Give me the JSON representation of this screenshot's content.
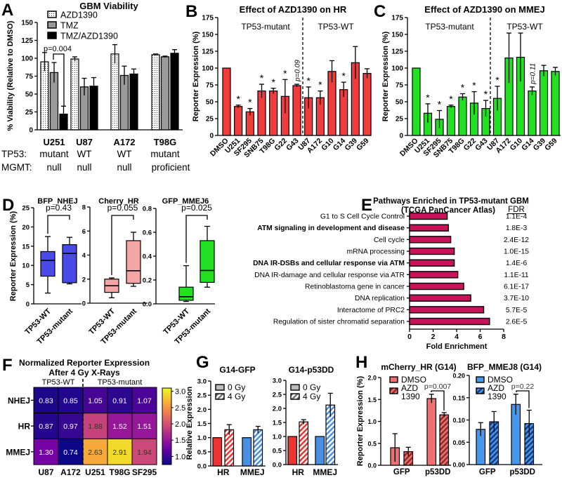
{
  "panel_letters": [
    "A",
    "B",
    "C",
    "D",
    "E",
    "F",
    "G",
    "H"
  ],
  "colors": {
    "hr_red": "#f03c3c",
    "mmej_green": "#22e022",
    "nhej_blue": "#4a4ae8",
    "cherry_pink": "#f4a6a6",
    "pathway_magenta": "#c8125a",
    "g_red": "#ee3333",
    "g_blue": "#4a90e2",
    "h_red": "#f07070",
    "h_red_hatch": "#8b2b2b",
    "h_blue": "#4499ee",
    "h_blue_hatch": "#1a3a7a"
  },
  "chart_data": [
    {
      "panel": "A",
      "type": "bar",
      "title": "GBM Viability",
      "ylabel": "% Viability (Relative to DMSO)",
      "ylim": [
        0,
        150
      ],
      "yticks": [
        "0",
        "25",
        "50",
        "75",
        "100",
        "125",
        "150"
      ],
      "categories": [
        "U251",
        "U87",
        "A172",
        "T98G"
      ],
      "series": [
        {
          "name": "AZD1390",
          "pattern": "dotted",
          "values": [
            95,
            99,
            106,
            105
          ],
          "errors": [
            13,
            3,
            13,
            1
          ]
        },
        {
          "name": "TMZ",
          "color": "#9a9a9a",
          "values": [
            80,
            60,
            76,
            102
          ],
          "errors": [
            14,
            12,
            13,
            1
          ]
        },
        {
          "name": "TMZ/AZD1390",
          "color": "#000000",
          "values": [
            22,
            61,
            78,
            107
          ],
          "errors": [
            11,
            12,
            7,
            5
          ]
        }
      ],
      "annotation": "p=0.004",
      "rows": [
        {
          "label": "TP53:",
          "values": [
            "mutant",
            "WT",
            "WT",
            "mutant"
          ]
        },
        {
          "label": "MGMT:",
          "values": [
            "null",
            "null",
            "null",
            "proficient"
          ]
        }
      ],
      "legend": "top-left"
    },
    {
      "panel": "B",
      "type": "bar",
      "title": "Effect of AZD1390 on HR",
      "ylabel": "Reporter Expression (%)",
      "ylim": [
        0,
        175
      ],
      "yticks": [
        "0",
        "25",
        "50",
        "75",
        "100",
        "125",
        "150",
        "175"
      ],
      "groups": [
        "TP53-mutant",
        "TP53-WT"
      ],
      "categories": [
        "DMSO",
        "U251",
        "SF295",
        "SNB75",
        "T98G",
        "G22",
        "G43",
        "U87",
        "A172",
        "G10",
        "G14",
        "G39",
        "G59"
      ],
      "values": [
        100,
        43,
        35,
        66,
        66,
        58,
        74,
        56,
        56,
        95,
        68,
        108,
        92
      ],
      "errors": [
        0,
        2,
        5,
        10,
        4,
        25,
        2,
        16,
        10,
        16,
        11,
        24,
        7
      ],
      "marks": [
        "",
        "*",
        "*",
        "*",
        "*",
        "*",
        "p=0.09",
        "*",
        "*",
        "",
        "*",
        "",
        ""
      ]
    },
    {
      "panel": "C",
      "type": "bar",
      "title": "Effect of AZD1390 on MMEJ",
      "ylabel": "Reporter Expression (%)",
      "ylim": [
        0,
        175
      ],
      "yticks": [
        "0",
        "25",
        "50",
        "75",
        "100",
        "125",
        "150",
        "175"
      ],
      "groups": [
        "TP53-mutant",
        "TP53-WT"
      ],
      "categories": [
        "DMSO",
        "U251",
        "SF295",
        "SNB75",
        "T98G",
        "G22",
        "G43",
        "U87",
        "A172",
        "G10",
        "G14",
        "G39",
        "G59"
      ],
      "values": [
        100,
        33,
        24,
        43,
        57,
        48,
        40,
        55,
        115,
        116,
        66,
        96,
        95
      ],
      "errors": [
        0,
        14,
        13,
        2,
        5,
        17,
        12,
        18,
        37,
        36,
        6,
        8,
        6
      ],
      "marks": [
        "",
        "*",
        "*",
        "*",
        "*",
        "*",
        "*",
        "*",
        "",
        "",
        "p=0.11",
        "",
        ""
      ]
    },
    {
      "panel": "D",
      "type": "box",
      "ylabel": "Reporter Expression (%)",
      "subplots": [
        {
          "title": "BFP_NHEJ",
          "ylim": [
            0,
            25
          ],
          "yticks": [
            "0",
            "5",
            "10",
            "15",
            "20",
            "25"
          ],
          "p": "p=0.43",
          "boxes": [
            {
              "label": "TP53-WT",
              "min": 2.8,
              "q1": 7.2,
              "median": 11.3,
              "q3": 13.6,
              "max": 17.5
            },
            {
              "label": "TP53-mutant",
              "min": 5.2,
              "q1": 5.5,
              "median": 13.1,
              "q3": 15.4,
              "max": 17.3
            }
          ]
        },
        {
          "title": "Cherry_HR",
          "ylim": [
            0,
            8
          ],
          "yticks": [
            "0",
            "2",
            "4",
            "6",
            "8"
          ],
          "p": "p=0.055",
          "boxes": [
            {
              "label": "TP53-WT",
              "min": 0.45,
              "q1": 0.9,
              "median": 1.45,
              "q3": 2.0,
              "max": 2.1
            },
            {
              "label": "TP53-mutant",
              "min": 1.4,
              "q1": 1.65,
              "median": 2.7,
              "q3": 5.2,
              "max": 5.9
            }
          ]
        },
        {
          "title": "GFP_MMEJ6",
          "ylim": [
            0,
            0.8
          ],
          "yticks": [
            "0.0",
            "0.2",
            "0.4",
            "0.6",
            "0.8"
          ],
          "p": "p=0.025",
          "boxes": [
            {
              "label": "TP53-WT",
              "min": 0.02,
              "q1": 0.03,
              "median": 0.06,
              "q3": 0.14,
              "max": 0.32
            },
            {
              "label": "TP53-mutant",
              "min": 0.14,
              "q1": 0.18,
              "median": 0.28,
              "q3": 0.53,
              "max": 0.65
            }
          ]
        }
      ]
    },
    {
      "panel": "E",
      "type": "bar",
      "orientation": "horizontal",
      "title": "Pathways Enriched in TP53-mutant GBM",
      "subtitle": "(TCGA PanCancer Atlas)",
      "xlabel": "Fold Enrichment",
      "xlim": [
        0,
        8
      ],
      "xticks": [
        "0",
        "2",
        "4",
        "6",
        "8"
      ],
      "fdr_header": "FDR",
      "items": [
        {
          "label": "G1 to S Cell Cycle Control",
          "value": 3.2,
          "fdr": "1.1E-4",
          "bold": false
        },
        {
          "label": "ATM signaling in development and disease",
          "value": 3.3,
          "fdr": "1.8E-3",
          "bold": true
        },
        {
          "label": "Cell cycle",
          "value": 3.5,
          "fdr": "2.4E-12",
          "bold": false
        },
        {
          "label": "mRNA processing",
          "value": 3.8,
          "fdr": "1.0E-15",
          "bold": false
        },
        {
          "label": "DNA IR-DSBs and cellular response via ATM",
          "value": 3.8,
          "fdr": "1.4E-6",
          "bold": true
        },
        {
          "label": "DNA IR-damage and cellular response via ATR",
          "value": 4.1,
          "fdr": "1.1E-11",
          "bold": false
        },
        {
          "label": "Retinoblastoma gene in cancer",
          "value": 4.6,
          "fdr": "6.1E-17",
          "bold": false
        },
        {
          "label": "DNA replication",
          "value": 5.2,
          "fdr": "3.7E-10",
          "bold": false
        },
        {
          "label": "Interactome of PRC2",
          "value": 6.3,
          "fdr": "5.7E-5",
          "bold": false
        },
        {
          "label": "Regulation of sister chromatid separation",
          "value": 6.8,
          "fdr": "2.6E-5",
          "bold": false
        }
      ]
    },
    {
      "panel": "F",
      "type": "heatmap",
      "title": "Normalized Reporter Expression",
      "subtitle": "After 4 Gy X-Rays",
      "groups": [
        "TP53-WT",
        "TP53-mutant"
      ],
      "rows": [
        "NHEJ",
        "HR",
        "MMEJ"
      ],
      "columns": [
        "U87",
        "A172",
        "U251",
        "T98G",
        "SF295"
      ],
      "values": [
        [
          "0.83",
          "0.85",
          "1.05",
          "0.91",
          "1.07"
        ],
        [
          "0.87",
          "0.97",
          "1.88",
          "1.52",
          "1.51"
        ],
        [
          "1.30",
          "0.74",
          "2.63",
          "2.91",
          "1.94"
        ]
      ],
      "colormap": "plasma",
      "clim": [
        0.75,
        3.1
      ],
      "colorbar_ticks": [
        "1.0",
        "1.5",
        "2.0",
        "2.5",
        "3.0"
      ]
    },
    {
      "panel": "G",
      "type": "bar",
      "ylabel": "Relative Expression",
      "legend": [
        "0 Gy",
        "4 Gy"
      ],
      "subplots": [
        {
          "title": "G14-GFP",
          "ylim": [
            0,
            3
          ],
          "yticks": [
            "0.0",
            "0.5",
            "1.0",
            "1.5",
            "2.0",
            "2.5",
            "3.0"
          ],
          "categories": [
            "HR",
            "MMEJ"
          ],
          "values_0gy": [
            1.0,
            1.0
          ],
          "values_4gy": [
            1.28,
            1.28
          ],
          "errors_4gy": [
            0.18,
            0.12
          ]
        },
        {
          "title": "G14-p53DD",
          "ylim": [
            0,
            3
          ],
          "yticks": [
            "0.0",
            "0.5",
            "1.0",
            "1.5",
            "2.0",
            "2.5",
            "3.0"
          ],
          "categories": [
            "HR",
            "MMEJ"
          ],
          "values_0gy": [
            1.0,
            1.0
          ],
          "values_4gy": [
            1.52,
            2.12
          ],
          "errors_4gy": [
            0.08,
            0.42
          ]
        }
      ]
    },
    {
      "panel": "H",
      "type": "bar",
      "ylabel": "Reporter Expression (%)",
      "legend": [
        "DMSO",
        "AZD",
        "1390"
      ],
      "subplots": [
        {
          "title": "mCherry_HR (G14)",
          "ylim": [
            0,
            2
          ],
          "yticks": [
            "0.0",
            "0.5",
            "1.0",
            "1.5",
            "2.0"
          ],
          "categories": [
            "GFP",
            "p53DD"
          ],
          "dmso": [
            0.4,
            1.52
          ],
          "dmso_err": [
            0.32,
            0.1
          ],
          "azd": [
            0.31,
            1.15
          ],
          "azd_err": [
            0.1,
            0.05
          ],
          "p": "p=0.007"
        },
        {
          "title": "BFP_MMEJ8 (G14)",
          "ylim": [
            0,
            0.2
          ],
          "yticks": [
            "0.00",
            "0.05",
            "0.10",
            "0.15",
            "0.20"
          ],
          "categories": [
            "GFP",
            "p53DD"
          ],
          "dmso": [
            0.079,
            0.135
          ],
          "dmso_err": [
            0.015,
            0.023
          ],
          "azd": [
            0.096,
            0.092
          ],
          "azd_err": [
            0.023,
            0.03
          ],
          "p": "p=0.22"
        }
      ]
    }
  ]
}
